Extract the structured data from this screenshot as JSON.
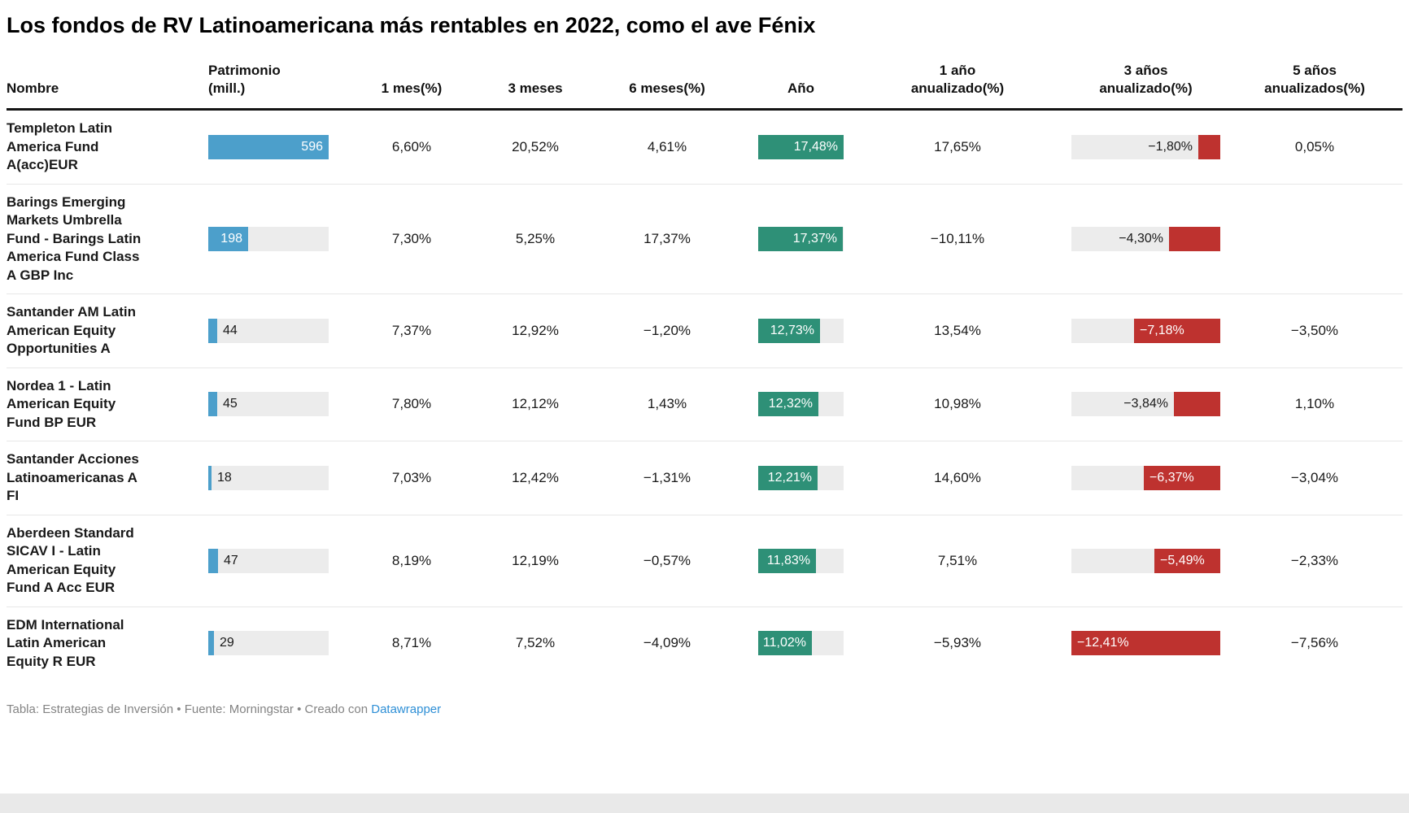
{
  "title": "Los fondos de RV Latinoamericana más rentables en 2022, como el ave Fénix",
  "footer": {
    "text": "Tabla: Estrategias de Inversión • Fuente: Morningstar • Creado con",
    "link_label": "Datawrapper"
  },
  "colors": {
    "bar_blue": "#4C9FCB",
    "bar_green": "#2E9077",
    "bar_red": "#BE322F",
    "bar_track": "#ECECEC",
    "link_blue": "#2E8FD6"
  },
  "chart_data": {
    "type": "table",
    "title": "Los fondos de RV Latinoamericana más rentables en 2022, como el ave Fénix",
    "columns": [
      {
        "key": "nombre",
        "label": "Nombre",
        "align": "left"
      },
      {
        "key": "patrimonio",
        "label": "Patrimonio\n(mill.)",
        "align": "padl"
      },
      {
        "key": "1mes",
        "label": "1 mes(%)",
        "align": "center"
      },
      {
        "key": "3meses",
        "label": "3 meses",
        "align": "center"
      },
      {
        "key": "6meses",
        "label": "6 meses(%)",
        "align": "center"
      },
      {
        "key": "ano",
        "label": "Año",
        "align": "center"
      },
      {
        "key": "1ano-anualizado",
        "label": "1 año\nanualizado(%)",
        "align": "center"
      },
      {
        "key": "3anos-anualizado",
        "label": "3 años\nanualizado(%)",
        "align": "center"
      },
      {
        "key": "5anos-anualizados",
        "label": "5 años\nanualizados(%)",
        "align": "center"
      }
    ],
    "bar_scales": {
      "patrimonio_max": 596,
      "ano_max": 17.48,
      "y3_abs_max": 12.41
    },
    "rows": [
      {
        "name": "Templeton Latin\nAmerica Fund\nA(acc)EUR",
        "patrimonio": {
          "value": 596,
          "label": "596"
        },
        "m1": "6,60%",
        "m3": "20,52%",
        "m6": "4,61%",
        "ano": {
          "value": 17.48,
          "label": "17,48%"
        },
        "y1": "17,65%",
        "y3": {
          "value": -1.8,
          "label": "−1,80%"
        },
        "y5": "0,05%"
      },
      {
        "name": "Barings Emerging\nMarkets Umbrella\nFund - Barings Latin\nAmerica Fund Class\nA GBP Inc",
        "patrimonio": {
          "value": 198,
          "label": "198"
        },
        "m1": "7,30%",
        "m3": "5,25%",
        "m6": "17,37%",
        "ano": {
          "value": 17.37,
          "label": "17,37%"
        },
        "y1": "−10,11%",
        "y3": {
          "value": -4.3,
          "label": "−4,30%"
        },
        "y5": ""
      },
      {
        "name": "Santander AM Latin\nAmerican Equity\nOpportunities A",
        "patrimonio": {
          "value": 44,
          "label": "44"
        },
        "m1": "7,37%",
        "m3": "12,92%",
        "m6": "−1,20%",
        "ano": {
          "value": 12.73,
          "label": "12,73%"
        },
        "y1": "13,54%",
        "y3": {
          "value": -7.18,
          "label": "−7,18%"
        },
        "y5": "−3,50%"
      },
      {
        "name": "Nordea 1 - Latin\nAmerican Equity\nFund BP EUR",
        "patrimonio": {
          "value": 45,
          "label": "45"
        },
        "m1": "7,80%",
        "m3": "12,12%",
        "m6": "1,43%",
        "ano": {
          "value": 12.32,
          "label": "12,32%"
        },
        "y1": "10,98%",
        "y3": {
          "value": -3.84,
          "label": "−3,84%"
        },
        "y5": "1,10%"
      },
      {
        "name": "Santander Acciones\nLatinoamericanas A\nFI",
        "patrimonio": {
          "value": 18,
          "label": "18"
        },
        "m1": "7,03%",
        "m3": "12,42%",
        "m6": "−1,31%",
        "ano": {
          "value": 12.21,
          "label": "12,21%"
        },
        "y1": "14,60%",
        "y3": {
          "value": -6.37,
          "label": "−6,37%"
        },
        "y5": "−3,04%"
      },
      {
        "name": "Aberdeen Standard\nSICAV I - Latin\nAmerican Equity\nFund A Acc EUR",
        "patrimonio": {
          "value": 47,
          "label": "47"
        },
        "m1": "8,19%",
        "m3": "12,19%",
        "m6": "−0,57%",
        "ano": {
          "value": 11.83,
          "label": "11,83%"
        },
        "y1": "7,51%",
        "y3": {
          "value": -5.49,
          "label": "−5,49%"
        },
        "y5": "−2,33%"
      },
      {
        "name": "EDM International\nLatin American\nEquity R EUR",
        "patrimonio": {
          "value": 29,
          "label": "29"
        },
        "m1": "8,71%",
        "m3": "7,52%",
        "m6": "−4,09%",
        "ano": {
          "value": 11.02,
          "label": "11,02%"
        },
        "y1": "−5,93%",
        "y3": {
          "value": -12.41,
          "label": "−12,41%"
        },
        "y5": "−7,56%"
      }
    ]
  }
}
